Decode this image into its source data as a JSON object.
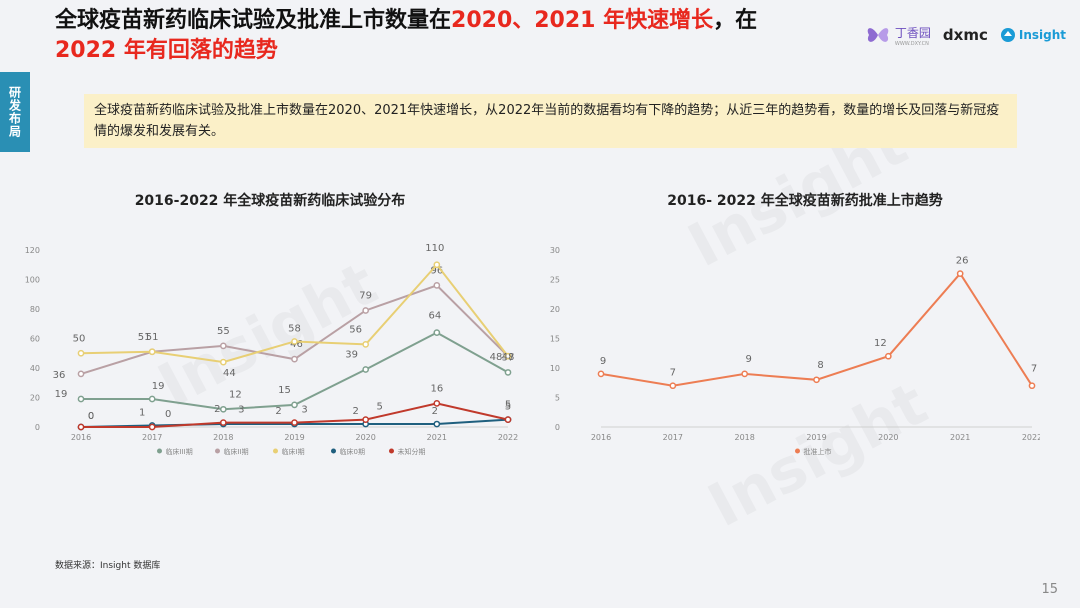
{
  "title": {
    "part1": "全球疫苗新药临床试验及批准上市数量在",
    "highlight1": "2020、2021 年快速增长",
    "part2": "，在",
    "highlight2": "2022 年有回落的趋势"
  },
  "logos": {
    "dxy_name": "丁香园",
    "dxy_sub": "WWW.DXY.CN",
    "amc": "dxmc",
    "insight": "Insight"
  },
  "sidebar_label": "研发布局",
  "summary": "全球疫苗新药临床试验及批准上市数量在2020、2021年快速增长，从2022年当前的数据看均有下降的趋势；从近三年的趋势看，数量的增长及回落与新冠疫情的爆发和发展有关。",
  "source": "数据来源：Insight 数据库",
  "page_number": "15",
  "watermark": "Insight",
  "colors": {
    "phase3": "#7fa08f",
    "phase2": "#b9a0a4",
    "phase1": "#e8cf74",
    "phase0": "#1f5f7e",
    "unknown": "#c0392b",
    "approval": "#ed7d53"
  },
  "chart_data": [
    {
      "type": "line",
      "title": "2016-2022 年全球疫苗新药临床试验分布",
      "categories": [
        "2016",
        "2017",
        "2018",
        "2019",
        "2020",
        "2021",
        "2022"
      ],
      "ylim": [
        0,
        120
      ],
      "yticks": [
        "0",
        "20",
        "40",
        "60",
        "80",
        "100",
        "120"
      ],
      "series": [
        {
          "name": "临床III期",
          "key": "phase3",
          "values": [
            19,
            19,
            12,
            15,
            39,
            64,
            37
          ]
        },
        {
          "name": "临床II期",
          "key": "phase2",
          "values": [
            36,
            51,
            55,
            46,
            79,
            96,
            48
          ]
        },
        {
          "name": "临床I期",
          "key": "phase1",
          "values": [
            50,
            51,
            44,
            58,
            56,
            110,
            48
          ]
        },
        {
          "name": "临床0期",
          "key": "phase0",
          "values": [
            0,
            1,
            2,
            2,
            2,
            2,
            5
          ]
        },
        {
          "name": "未知分期",
          "key": "unknown",
          "values": [
            0,
            0,
            3,
            3,
            5,
            16,
            5
          ]
        }
      ]
    },
    {
      "type": "line",
      "title": "2016- 2022 年全球疫苗新药批准上市趋势",
      "categories": [
        "2016",
        "2017",
        "2018",
        "2019",
        "2020",
        "2021",
        "2022"
      ],
      "ylim": [
        0,
        30
      ],
      "yticks": [
        "0",
        "5",
        "10",
        "15",
        "20",
        "25",
        "30"
      ],
      "series": [
        {
          "name": "批准上市",
          "key": "approval",
          "values": [
            9,
            7,
            9,
            8,
            12,
            26,
            7
          ]
        }
      ]
    }
  ]
}
